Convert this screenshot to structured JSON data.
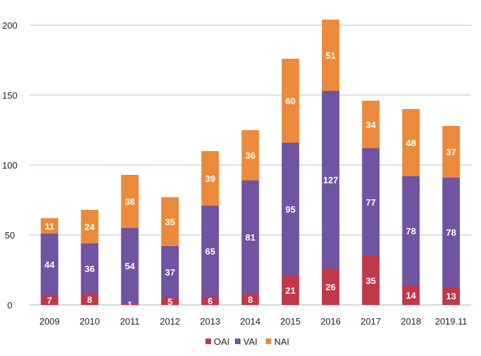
{
  "chart_data": {
    "type": "bar",
    "stacked": true,
    "title": "",
    "xlabel": "",
    "ylabel": "",
    "ylim": [
      0,
      200
    ],
    "yticks": [
      "0",
      "50",
      "100",
      "150",
      "200"
    ],
    "grid": true,
    "legend_position": "bottom",
    "categories": [
      "2009",
      "2010",
      "2011",
      "2012",
      "2013",
      "2014",
      "2015",
      "2016",
      "2017",
      "2018",
      "2019.11"
    ],
    "series": [
      {
        "name": "OAI",
        "color": "#c0384a",
        "values": [
          7,
          8,
          1,
          5,
          6,
          8,
          21,
          26,
          35,
          14,
          13
        ]
      },
      {
        "name": "VAI",
        "color": "#7053a1",
        "values": [
          44,
          36,
          54,
          37,
          65,
          81,
          95,
          127,
          77,
          78,
          78
        ]
      },
      {
        "name": "NAI",
        "color": "#ec8a3c",
        "values": [
          11,
          24,
          38,
          35,
          39,
          36,
          60,
          51,
          34,
          48,
          37
        ]
      }
    ]
  }
}
